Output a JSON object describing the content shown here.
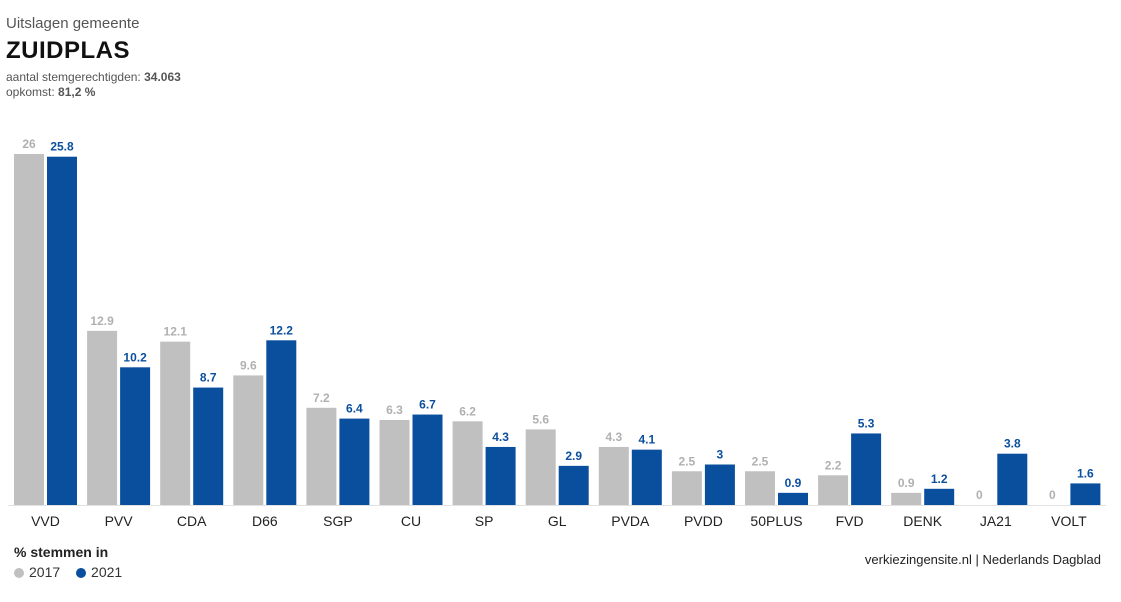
{
  "header": {
    "subtitle": "Uitslagen gemeente",
    "title": "ZUIDPLAS",
    "eligible_label": "aantal stemgerechtigden:",
    "eligible_value": "34.063",
    "turnout_label": "opkomst:",
    "turnout_value": "81,2 %"
  },
  "legend": {
    "title": "% stemmen in",
    "items": [
      {
        "label": "2017",
        "color": "#c0c0c0"
      },
      {
        "label": "2021",
        "color": "#0a4f9e"
      }
    ]
  },
  "source": "verkiezingensite.nl | Nederlands Dagblad",
  "colors": {
    "y2017": "#c0c0c0",
    "y2021": "#0a4f9e",
    "label2017": "#b0b0b0",
    "label2021": "#0a4f9e"
  },
  "chart_data": {
    "type": "bar",
    "title": "ZUIDPLAS",
    "categories": [
      "VVD",
      "PVV",
      "CDA",
      "D66",
      "SGP",
      "CU",
      "SP",
      "GL",
      "PVDA",
      "PVDD",
      "50PLUS",
      "FVD",
      "DENK",
      "JA21",
      "VOLT"
    ],
    "series": [
      {
        "name": "2017",
        "values": [
          26,
          12.9,
          12.1,
          9.6,
          7.2,
          6.3,
          6.2,
          5.6,
          4.3,
          2.5,
          2.5,
          2.2,
          0.9,
          0,
          0
        ]
      },
      {
        "name": "2021",
        "values": [
          25.8,
          10.2,
          8.7,
          12.2,
          6.4,
          6.7,
          4.3,
          2.9,
          4.1,
          3,
          0.9,
          5.3,
          1.2,
          3.8,
          1.6
        ]
      }
    ],
    "ylabel": "% stemmen in",
    "grid": false,
    "legend_position": "bottom-left"
  }
}
